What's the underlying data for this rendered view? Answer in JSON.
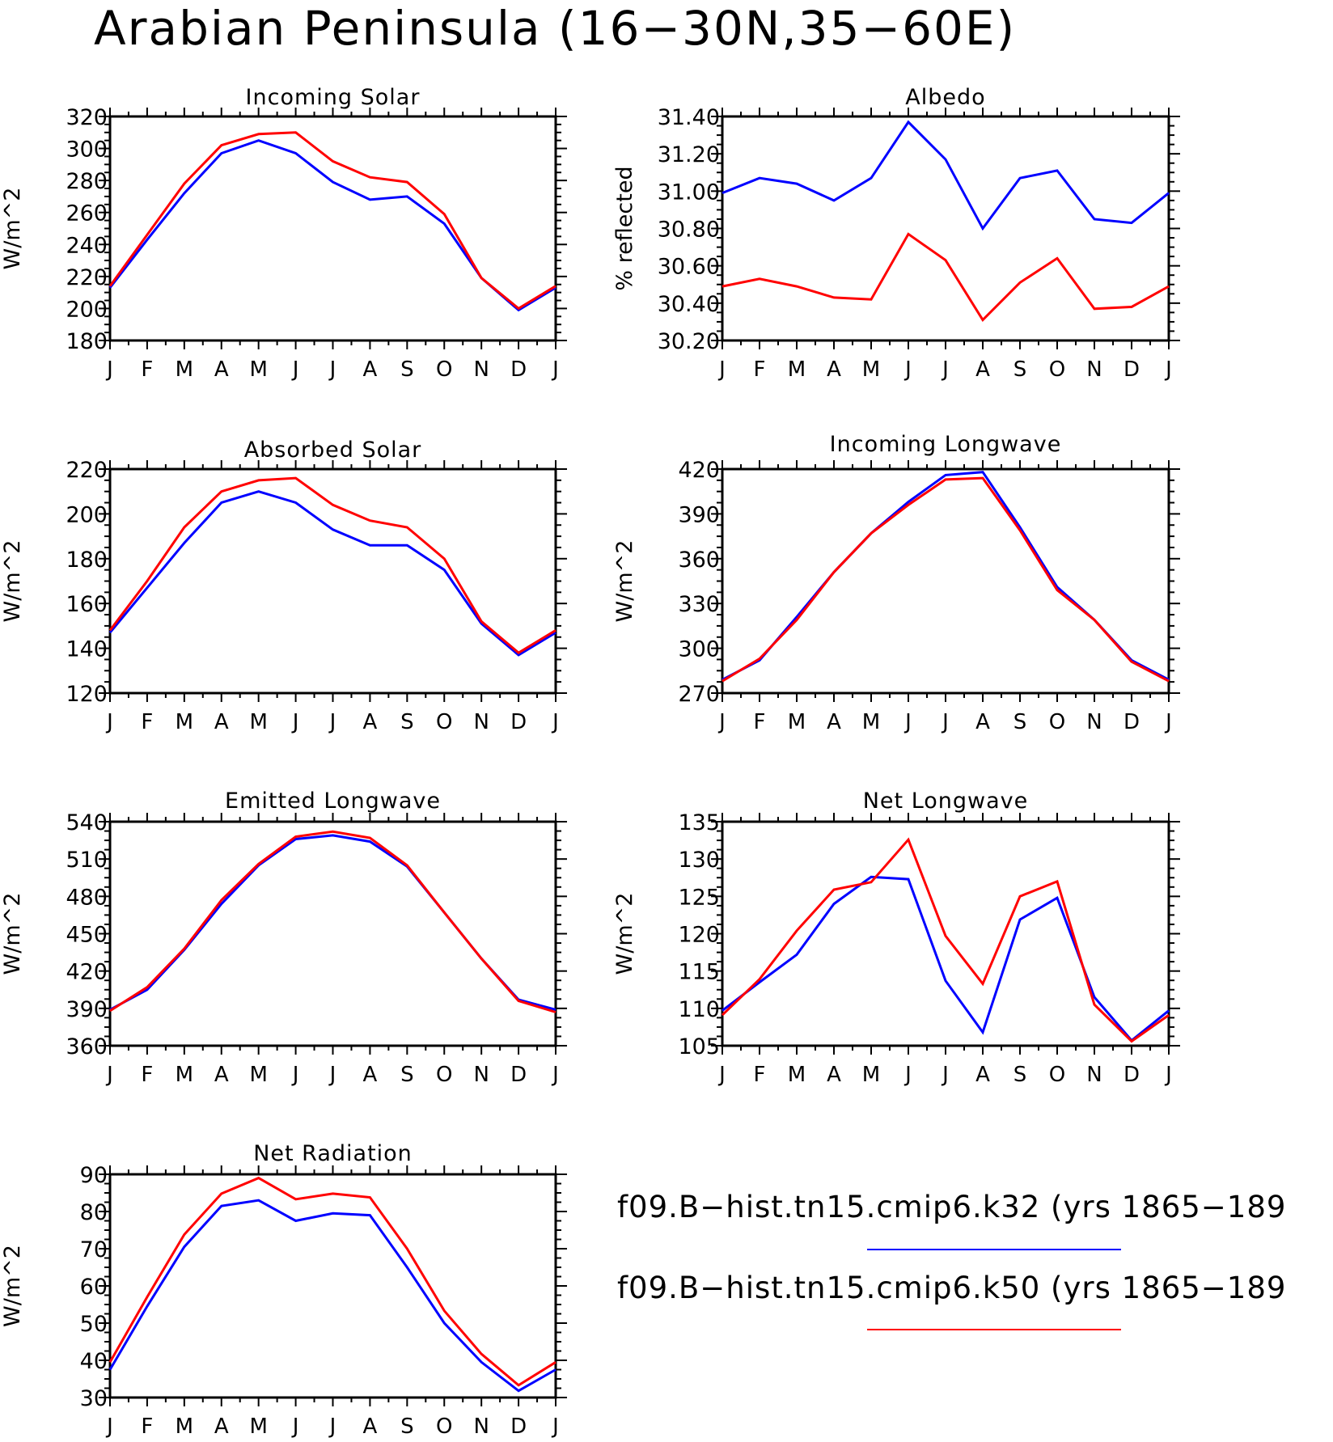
{
  "figure": {
    "title": "Arabian Peninsula (16−30N,35−60E)",
    "months": [
      "J",
      "F",
      "M",
      "A",
      "M",
      "J",
      "J",
      "A",
      "S",
      "O",
      "N",
      "D",
      "J"
    ]
  },
  "legend": {
    "items": [
      {
        "label": "f09.B−hist.tn15.cmip6.k32 (yrs 1865−189",
        "color": "#0000ff"
      },
      {
        "label": "f09.B−hist.tn15.cmip6.k50 (yrs 1865−189",
        "color": "#ff0000"
      }
    ]
  },
  "chart_data": [
    {
      "type": "line",
      "title": "Incoming Solar",
      "ylabel": "W/m^2",
      "ylim": [
        180,
        320
      ],
      "yticks": [
        "180",
        "200",
        "220",
        "240",
        "260",
        "280",
        "300",
        "320"
      ],
      "categories": [
        "J",
        "F",
        "M",
        "A",
        "M",
        "J",
        "J",
        "A",
        "S",
        "O",
        "N",
        "D",
        "J"
      ],
      "series": [
        {
          "color": "#0000ff",
          "values": [
            213,
            243,
            272,
            297,
            305,
            297,
            279,
            268,
            270,
            253,
            219,
            199,
            213
          ]
        },
        {
          "color": "#ff0000",
          "values": [
            214,
            246,
            278,
            302,
            309,
            310,
            292,
            282,
            279,
            259,
            219,
            200,
            214
          ]
        }
      ]
    },
    {
      "type": "line",
      "title": "Albedo",
      "ylabel": "% reflected",
      "ylim": [
        30.2,
        31.4
      ],
      "yticks": [
        "30.20",
        "30.40",
        "30.60",
        "30.80",
        "31.00",
        "31.20",
        "31.40"
      ],
      "categories": [
        "J",
        "F",
        "M",
        "A",
        "M",
        "J",
        "J",
        "A",
        "S",
        "O",
        "N",
        "D",
        "J"
      ],
      "series": [
        {
          "color": "#0000ff",
          "values": [
            30.99,
            31.07,
            31.04,
            30.95,
            31.07,
            31.37,
            31.17,
            30.8,
            31.07,
            31.11,
            30.85,
            30.83,
            30.99
          ]
        },
        {
          "color": "#ff0000",
          "values": [
            30.49,
            30.53,
            30.49,
            30.43,
            30.42,
            30.77,
            30.63,
            30.31,
            30.51,
            30.64,
            30.37,
            30.38,
            30.49
          ]
        }
      ]
    },
    {
      "type": "line",
      "title": "Absorbed Solar",
      "ylabel": "W/m^2",
      "ylim": [
        120,
        220
      ],
      "yticks": [
        "120",
        "140",
        "160",
        "180",
        "200",
        "220"
      ],
      "categories": [
        "J",
        "F",
        "M",
        "A",
        "M",
        "J",
        "J",
        "A",
        "S",
        "O",
        "N",
        "D",
        "J"
      ],
      "series": [
        {
          "color": "#0000ff",
          "values": [
            147,
            167,
            187,
            205,
            210,
            205,
            193,
            186,
            186,
            175,
            151,
            137,
            147
          ]
        },
        {
          "color": "#ff0000",
          "values": [
            148,
            170,
            194,
            210,
            215,
            216,
            204,
            197,
            194,
            180,
            152,
            138,
            148
          ]
        }
      ]
    },
    {
      "type": "line",
      "title": "Incoming Longwave",
      "ylabel": "W/m^2",
      "ylim": [
        270,
        420
      ],
      "yticks": [
        "270",
        "300",
        "330",
        "360",
        "390",
        "420"
      ],
      "categories": [
        "J",
        "F",
        "M",
        "A",
        "M",
        "J",
        "J",
        "A",
        "S",
        "O",
        "N",
        "D",
        "J"
      ],
      "series": [
        {
          "color": "#0000ff",
          "values": [
            279,
            292,
            321,
            351,
            377,
            398,
            416,
            418,
            381,
            341,
            319,
            292,
            279
          ]
        },
        {
          "color": "#ff0000",
          "values": [
            278,
            293,
            319,
            351,
            377,
            396,
            413,
            414,
            379,
            339,
            319,
            291,
            278
          ]
        }
      ]
    },
    {
      "type": "line",
      "title": "Emitted Longwave",
      "ylabel": "W/m^2",
      "ylim": [
        360,
        540
      ],
      "yticks": [
        "360",
        "390",
        "420",
        "450",
        "480",
        "510",
        "540"
      ],
      "categories": [
        "J",
        "F",
        "M",
        "A",
        "M",
        "J",
        "J",
        "A",
        "S",
        "O",
        "N",
        "D",
        "J"
      ],
      "series": [
        {
          "color": "#0000ff",
          "values": [
            389,
            405,
            437,
            474,
            505,
            526,
            529,
            524,
            504,
            467,
            430,
            397,
            389
          ]
        },
        {
          "color": "#ff0000",
          "values": [
            388,
            407,
            438,
            477,
            506,
            528,
            532,
            527,
            505,
            467,
            430,
            396,
            387
          ]
        }
      ]
    },
    {
      "type": "line",
      "title": "Net Longwave",
      "ylabel": "W/m^2",
      "ylim": [
        105,
        135
      ],
      "yticks": [
        "105",
        "110",
        "115",
        "120",
        "125",
        "130",
        "135"
      ],
      "categories": [
        "J",
        "F",
        "M",
        "A",
        "M",
        "J",
        "J",
        "A",
        "S",
        "O",
        "N",
        "D",
        "J"
      ],
      "series": [
        {
          "color": "#0000ff",
          "values": [
            109.7,
            113.5,
            117.2,
            124.0,
            127.6,
            127.3,
            113.7,
            106.8,
            121.9,
            124.8,
            111.5,
            105.7,
            109.7
          ]
        },
        {
          "color": "#ff0000",
          "values": [
            109.1,
            113.9,
            120.4,
            125.9,
            126.9,
            132.6,
            119.7,
            113.3,
            125.0,
            127.0,
            110.5,
            105.6,
            109.1
          ]
        }
      ]
    },
    {
      "type": "line",
      "title": "Net Radiation",
      "ylabel": "W/m^2",
      "ylim": [
        30,
        90
      ],
      "yticks": [
        "30",
        "40",
        "50",
        "60",
        "70",
        "80",
        "90"
      ],
      "categories": [
        "J",
        "F",
        "M",
        "A",
        "M",
        "J",
        "J",
        "A",
        "S",
        "O",
        "N",
        "D",
        "J"
      ],
      "series": [
        {
          "color": "#0000ff",
          "values": [
            37.5,
            54.5,
            70.5,
            81.5,
            83,
            77.5,
            79.5,
            79,
            65,
            50,
            39.5,
            31.8,
            37.5
          ]
        },
        {
          "color": "#ff0000",
          "values": [
            39.5,
            57,
            73.8,
            84.8,
            89,
            83.3,
            84.8,
            83.8,
            70,
            53.3,
            41.7,
            33.3,
            39.5
          ]
        }
      ]
    }
  ]
}
